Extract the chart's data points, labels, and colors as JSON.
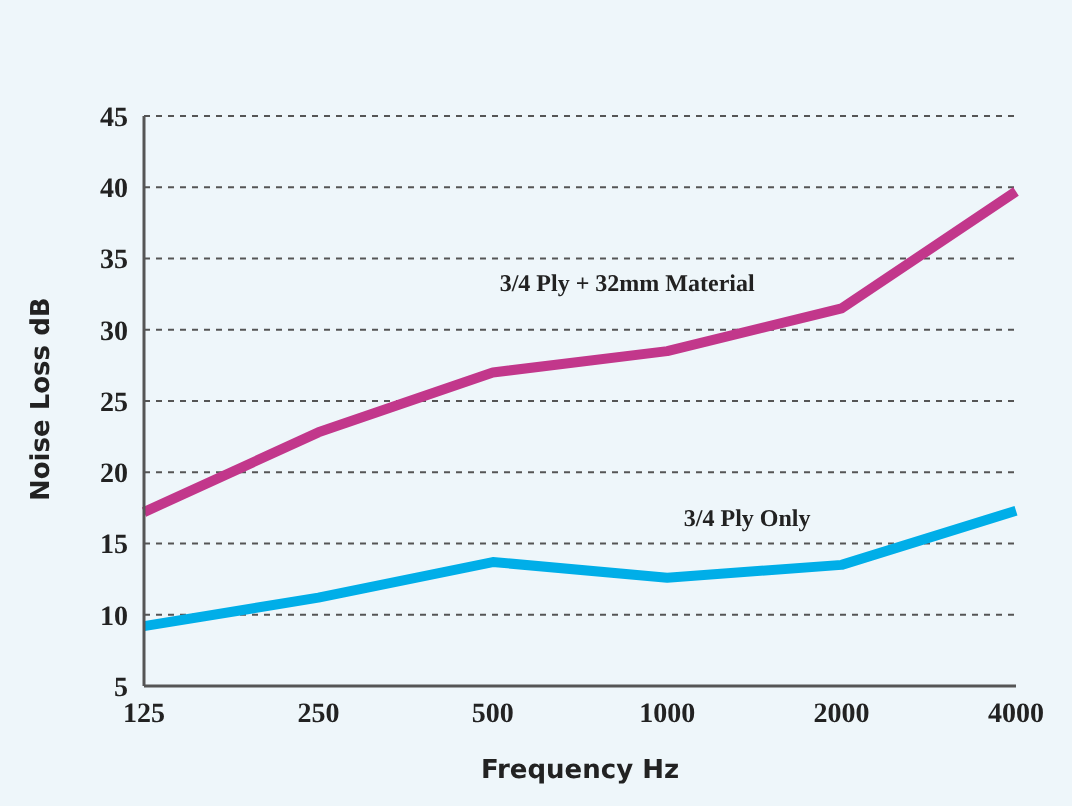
{
  "chart_data": {
    "type": "line",
    "xlabel": "Frequency Hz",
    "ylabel": "Noise Loss dB",
    "categories": [
      "125",
      "250",
      "500",
      "1000",
      "2000",
      "4000"
    ],
    "series": [
      {
        "name": "3/4 Ply + 32mm Material",
        "color": "#c2378b",
        "values": [
          17.2,
          22.8,
          27,
          28.5,
          31.5,
          39.7
        ]
      },
      {
        "name": "3/4 Ply Only",
        "color": "#00aee8",
        "values": [
          9.2,
          11.2,
          13.7,
          12.6,
          13.5,
          17.3
        ]
      }
    ],
    "ylim": [
      5,
      45
    ],
    "yticks": [
      5,
      10,
      15,
      20,
      25,
      30,
      35,
      40,
      45
    ],
    "grid": "y",
    "legend": false,
    "marker": "none",
    "line_style": "solid"
  }
}
